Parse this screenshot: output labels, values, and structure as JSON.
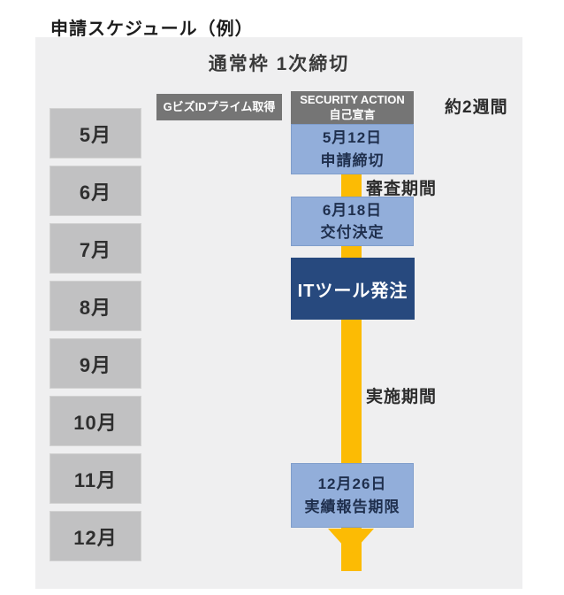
{
  "title": "申請スケジュール（例）",
  "panel": {
    "header": "通常枠 1次締切"
  },
  "months": [
    "5月",
    "6月",
    "7月",
    "8月",
    "9月",
    "10月",
    "11月",
    "12月"
  ],
  "flow": {
    "gbiz_label": "GビズIDプライム取得",
    "security_line1": "SECURITY ACTION",
    "security_line2": "自己宣言",
    "duration_note": "約2週間",
    "step1_line1": "5月12日",
    "step1_line2": "申請締切",
    "review_label": "審査期間",
    "step2_line1": "6月18日",
    "step2_line2": "交付決定",
    "order_label": "ITツール発注",
    "implementation_label": "実施期間",
    "step3_line1": "12月26日",
    "step3_line2": "実績報告期限"
  },
  "colors": {
    "panel_bg": "#efeff0",
    "month_box": "#c1c1c2",
    "prep_box": "#757575",
    "milestone_blue": "#92aeda",
    "order_navy": "#27497e",
    "arrow_yellow": "#fcbb04"
  }
}
